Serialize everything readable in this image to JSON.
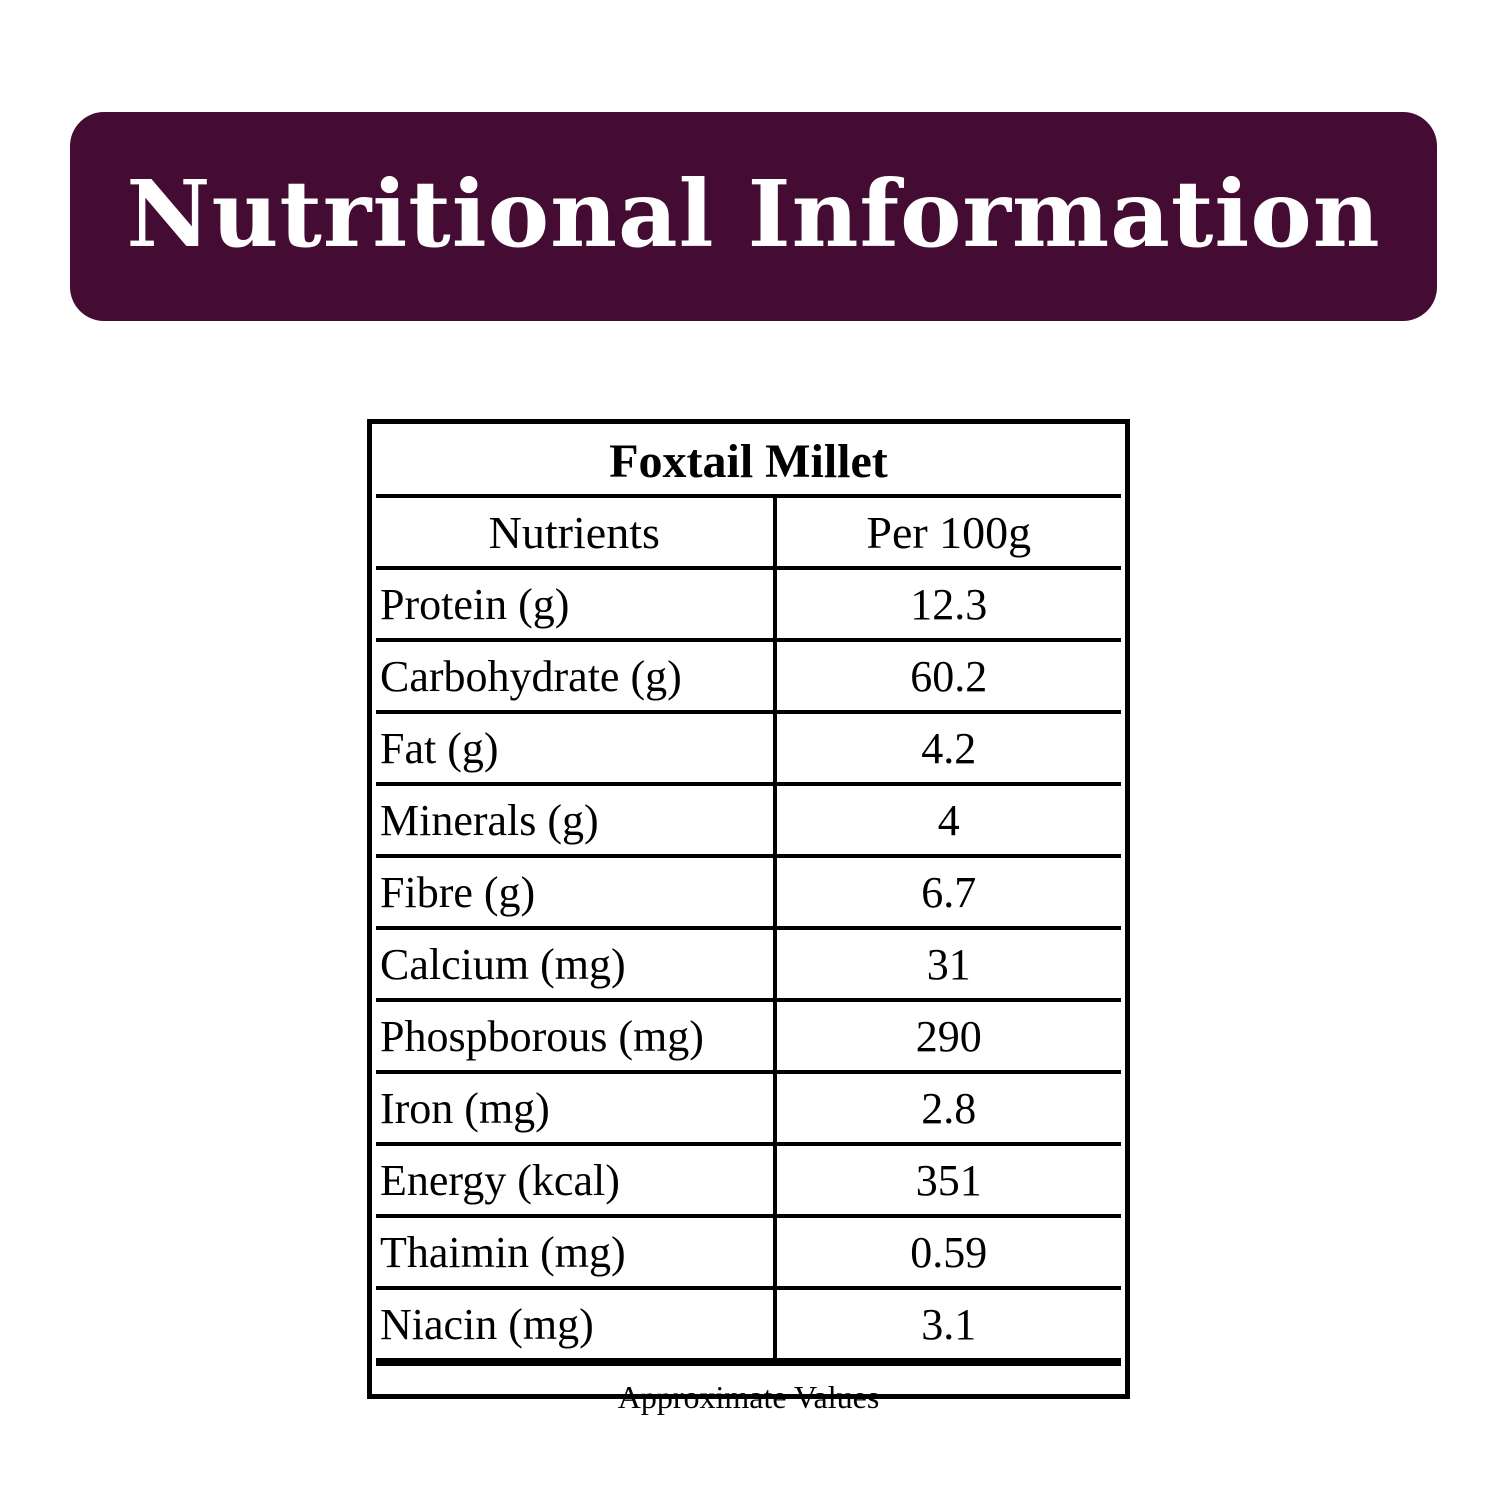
{
  "banner": {
    "title": "Nutritional Information",
    "background_color": "#450c33",
    "text_color": "#ffffff"
  },
  "table": {
    "title": "Foxtail Millet",
    "headers": {
      "nutrients": "Nutrients",
      "per": "Per 100g"
    },
    "rows": [
      {
        "nutrient": "Protein (g)",
        "value": "12.3"
      },
      {
        "nutrient": "Carbohydrate (g)",
        "value": "60.2"
      },
      {
        "nutrient": "Fat (g)",
        "value": "4.2"
      },
      {
        "nutrient": "Minerals (g)",
        "value": "4"
      },
      {
        "nutrient": "Fibre (g)",
        "value": "6.7"
      },
      {
        "nutrient": "Calcium (mg)",
        "value": "31"
      },
      {
        "nutrient": "Phospborous (mg)",
        "value": "290"
      },
      {
        "nutrient": "Iron (mg)",
        "value": "2.8"
      },
      {
        "nutrient": "Energy (kcal)",
        "value": "351"
      },
      {
        "nutrient": "Thaimin (mg)",
        "value": "0.59"
      },
      {
        "nutrient": "Niacin (mg)",
        "value": "3.1"
      }
    ],
    "footnote": "Approximate Values"
  }
}
